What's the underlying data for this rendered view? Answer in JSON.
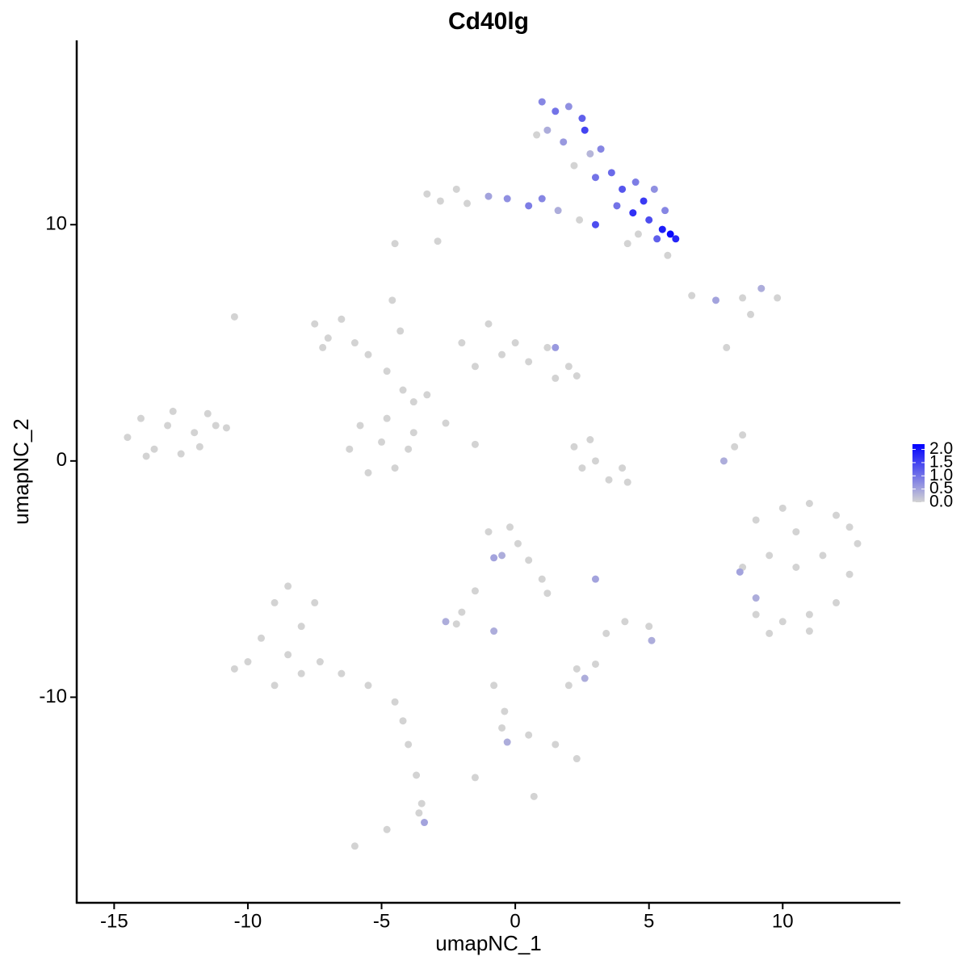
{
  "chart_data": {
    "type": "scatter",
    "title": "Cd40lg",
    "x_label": "umapNC_1",
    "y_label": "umapNC_2",
    "xlim": [
      -16.4,
      14.4
    ],
    "ylim": [
      -18.7,
      17.8
    ],
    "xticks": [
      -15,
      -10,
      -5,
      0,
      5,
      10
    ],
    "yticks": [
      -10,
      0,
      10
    ],
    "x": [
      -14.5,
      -14,
      -13.5,
      -13,
      -12.5,
      -12,
      -11.5,
      -11.2,
      -13.8,
      -12.8,
      -11.8,
      -10.8,
      -7.5,
      -7,
      -6.5,
      -6,
      -5.5,
      -7.2,
      -4.8,
      -4.2,
      -3.8,
      -3.3,
      -4.6,
      -4.3,
      -2.6,
      -1.5,
      -6.2,
      -5.5,
      -5,
      -4.5,
      -4,
      -5.8,
      -4.8,
      -3.8,
      -2,
      -1,
      -0.5,
      0.5,
      1.2,
      2,
      1.5,
      -1.5,
      0,
      2.3,
      1.5,
      -3.3,
      -2.8,
      -2.2,
      -1.8,
      -1,
      -0.3,
      0.5,
      1,
      1.6,
      2.4,
      3,
      1,
      1.5,
      2,
      2.5,
      1.2,
      1.8,
      2.6,
      2.8,
      2.2,
      3.2,
      3,
      0.8,
      3.6,
      4,
      4.5,
      4.8,
      5.2,
      3.8,
      4.4,
      5,
      5.5,
      5.8,
      6,
      5.3,
      4.6,
      4.2,
      5.6,
      5.7,
      6.6,
      7.5,
      8.5,
      9.2,
      9.8,
      8.8,
      7.9,
      2.2,
      3,
      3.5,
      4.2,
      2.8,
      4,
      2.5,
      8.2,
      8.5,
      7.8,
      9,
      10,
      11,
      12,
      12.8,
      8.5,
      9.5,
      10.5,
      11.5,
      12.5,
      9,
      10,
      11,
      12,
      9.5,
      11,
      8.4,
      9,
      10.5,
      12.5,
      -1,
      -0.2,
      -0.5,
      0.5,
      1,
      1.2,
      -0.8,
      0.1,
      -1.5,
      -2,
      -2.6,
      -2.2,
      -0.8,
      3,
      5.1,
      5,
      3.4,
      2,
      2.6,
      3,
      2.3,
      -0.8,
      -0.4,
      -0.3,
      0.5,
      1.5,
      2.3,
      -0.5,
      -10,
      -9.5,
      -9,
      -8.5,
      -8,
      -7.5,
      -9,
      -8,
      -7.3,
      -6.5,
      -5.5,
      -4.5,
      -10.5,
      -8.5,
      -4.2,
      -4,
      -3.7,
      -3.5,
      -3.4,
      -3.6,
      -6,
      -4.8,
      -10.5,
      -4.5,
      -2.9,
      -1.5,
      0.7,
      4.1
    ],
    "y": [
      1.0,
      1.8,
      0.5,
      1.5,
      0.3,
      1.2,
      2.0,
      1.5,
      0.2,
      2.1,
      0.6,
      1.4,
      5.8,
      5.2,
      6.0,
      5.0,
      4.5,
      4.8,
      3.8,
      3.0,
      2.5,
      2.8,
      6.8,
      5.5,
      1.6,
      0.7,
      0.5,
      -0.5,
      0.8,
      -0.3,
      0.5,
      1.5,
      1.8,
      1.2,
      5,
      5.8,
      4.5,
      4.2,
      4.8,
      4,
      3.5,
      4,
      5,
      3.6,
      4.8,
      11.3,
      11.0,
      11.5,
      10.9,
      11.2,
      11.1,
      10.8,
      11.1,
      10.6,
      10.2,
      10,
      15.2,
      14.8,
      15.0,
      14.5,
      14,
      13.5,
      14,
      13,
      12.5,
      13.2,
      12,
      13.8,
      12.2,
      11.5,
      11.8,
      11,
      11.5,
      10.8,
      10.5,
      10.2,
      9.8,
      9.6,
      9.4,
      9.4,
      9.6,
      9.2,
      10.6,
      8.7,
      7.0,
      6.8,
      6.9,
      7.3,
      6.9,
      6.2,
      4.8,
      0.6,
      0,
      -0.8,
      -0.9,
      0.9,
      -0.3,
      -0.3,
      0.6,
      1.1,
      0,
      -2.5,
      -2,
      -1.8,
      -2.3,
      -3.5,
      -4.5,
      -4,
      -4.5,
      -4,
      -4.8,
      -6.5,
      -6.8,
      -6.5,
      -6,
      -7.3,
      -7.2,
      -4.7,
      -5.8,
      -3,
      -2.8,
      -3,
      -2.8,
      -4,
      -4.2,
      -5,
      -5.6,
      -4.1,
      -3.5,
      -5.5,
      -6.4,
      -6.8,
      -6.9,
      -7.2,
      -5,
      -7.6,
      -7,
      -7.3,
      -9.5,
      -9.2,
      -8.6,
      -8.8,
      -9.5,
      -10.6,
      -11.9,
      -11.6,
      -12,
      -12.6,
      -11.3,
      -8.5,
      -7.5,
      -6,
      -5.3,
      -7,
      -6,
      -9.5,
      -9,
      -8.5,
      -9,
      -9.5,
      -10.2,
      -8.8,
      -8.2,
      -11,
      -12,
      -13.3,
      -14.5,
      -15.3,
      -14.9,
      -16.3,
      -15.6,
      6.1,
      9.2,
      9.3,
      -13.4,
      -14.2,
      -6.8
    ],
    "values": [
      0,
      0,
      0,
      0,
      0,
      0,
      0,
      0,
      0,
      0,
      0,
      0,
      0,
      0,
      0,
      0,
      0,
      0,
      0,
      0,
      0,
      0,
      0,
      0,
      0,
      0,
      0,
      0,
      0,
      0,
      0,
      0,
      0,
      0,
      0,
      0,
      0,
      0,
      0,
      0,
      0,
      0,
      0,
      0,
      0.6,
      0,
      0,
      0,
      0,
      0.5,
      0.7,
      0.9,
      0.8,
      0.4,
      0,
      1.4,
      0.8,
      1.0,
      0.7,
      1.2,
      0.4,
      0.6,
      1.5,
      0.3,
      0,
      0.8,
      1.0,
      0,
      1.1,
      1.3,
      0.9,
      1.6,
      0.7,
      1.0,
      1.7,
      1.4,
      1.9,
      2.1,
      1.8,
      1.2,
      0,
      0,
      0.8,
      0,
      0,
      0.5,
      0,
      0.4,
      0,
      0,
      0,
      0,
      0,
      0,
      0,
      0,
      0,
      0,
      0,
      0,
      0.4,
      0,
      0,
      0,
      0,
      0,
      0,
      0,
      0,
      0,
      0,
      0,
      0,
      0,
      0,
      0,
      0,
      0.5,
      0.4,
      0,
      0,
      0,
      0,
      0.4,
      0,
      0,
      0,
      0.5,
      0,
      0,
      0,
      0.4,
      0,
      0.4,
      0.5,
      0.4,
      0,
      0,
      0,
      0.4,
      0,
      0,
      0,
      0,
      0.4,
      0,
      0,
      0,
      0,
      0,
      0,
      0,
      0,
      0,
      0,
      0,
      0,
      0,
      0,
      0,
      0,
      0,
      0,
      0,
      0,
      0,
      0,
      0.5,
      0,
      0,
      0,
      0,
      0,
      0,
      0,
      0,
      0
    ],
    "colorbar": {
      "lim": [
        0,
        2.2
      ],
      "low": "#d3d3d3",
      "high": "#0000ff",
      "ticks": [
        {
          "value": 0,
          "label": "0.0"
        },
        {
          "value": 0.5,
          "label": "0.5"
        },
        {
          "value": 1,
          "label": "1.0"
        },
        {
          "value": 1.5,
          "label": "1.5"
        },
        {
          "value": 2,
          "label": "2.0"
        }
      ]
    }
  }
}
